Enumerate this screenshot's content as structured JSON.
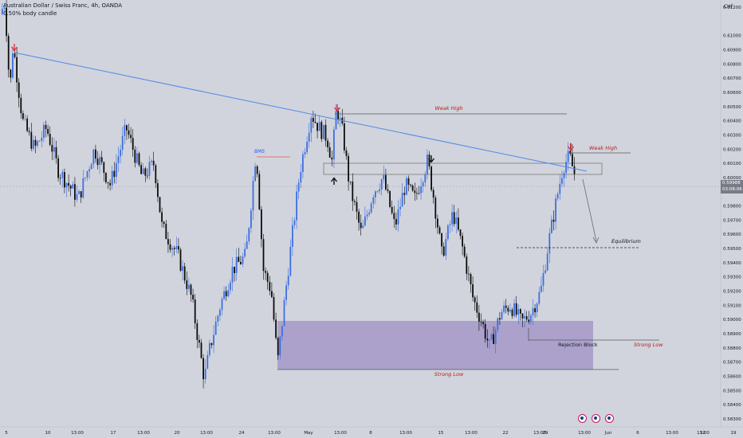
{
  "header": {
    "symbol_line": "Australian Dollar / Swiss Franc, 4h, OANDA",
    "indicator_line": "0.50% body candle"
  },
  "axis": {
    "currency": "CHF",
    "current_price": "0.59988",
    "countdown": "03:08:06"
  },
  "colors": {
    "background": "#d1d4dc",
    "bull_candle": "#3d6fe0",
    "bear_candle": "#0c0c0c",
    "trendline": "#4f88e8",
    "arrow_red": "#e8333a",
    "label_red": "#b71c1c",
    "zone_fill": "#9d90c5",
    "bms_line": "#e57373"
  },
  "annotations": {
    "weak_high_mid": "Weak High",
    "weak_high_right": "Weak High",
    "equilibrium": "Equilibrium",
    "rejection_block": "Rejection Block",
    "strong_low_right": "Strong Low",
    "strong_low_bottom": "Strong Low",
    "bms": "BMS"
  },
  "chart_data": {
    "type": "candlestick",
    "title": "Australian Dollar / Swiss Franc, 4h, OANDA",
    "timeframe": "4h",
    "ylim": [
      0.5823,
      0.6128
    ],
    "y_ticks": [
      "0.61200",
      "0.61000",
      "0.60900",
      "0.60800",
      "0.60700",
      "0.60600",
      "0.60500",
      "0.60400",
      "0.60300",
      "0.60200",
      "0.60100",
      "0.60000",
      "0.59900",
      "0.59800",
      "0.59700",
      "0.59600",
      "0.59500",
      "0.59400",
      "0.59300",
      "0.59200",
      "0.59100",
      "0.59000",
      "0.58900",
      "0.58800",
      "0.58700",
      "0.58600",
      "0.58500",
      "0.58400",
      "0.58300"
    ],
    "x_ticks": [
      "5",
      "10",
      "13:00",
      "17",
      "13:00",
      "20",
      "13:00",
      "24",
      "13:00",
      "May",
      "13:00",
      "8",
      "13:00",
      "15",
      "13:00",
      "22",
      "13:00",
      "29",
      "13:00",
      "Jun",
      "6",
      "13:00",
      "12",
      "13:00",
      "19"
    ],
    "key_points": [
      {
        "label": "start high",
        "y": 0.6125
      },
      {
        "label": "first swing high (red arrow)",
        "y": 0.6094
      },
      {
        "label": "low",
        "y": 0.5852
      },
      {
        "label": "BMS level",
        "y": 0.602
      },
      {
        "label": "swing high (red arrow)",
        "y": 0.6051
      },
      {
        "label": "pullback low",
        "y": 0.5955
      },
      {
        "label": "range low",
        "y": 0.588
      },
      {
        "label": "final high (red arrow)",
        "y": 0.6015
      },
      {
        "label": "last",
        "y": 0.59988
      }
    ],
    "levels": [
      {
        "name": "Weak High",
        "y": 0.6053
      },
      {
        "name": "Weak High",
        "y": 0.6023
      },
      {
        "name": "Equilibrium",
        "y": 0.5955
      },
      {
        "name": "Strong Low",
        "y": 0.5868
      },
      {
        "name": "Strong Low",
        "y": 0.5887
      }
    ],
    "zones": [
      {
        "name": "Demand zone",
        "y_top": 0.5901,
        "y_bottom": 0.5869
      },
      {
        "name": "Resistance box",
        "y_top": 0.6012,
        "y_bottom": 0.6004
      }
    ]
  }
}
